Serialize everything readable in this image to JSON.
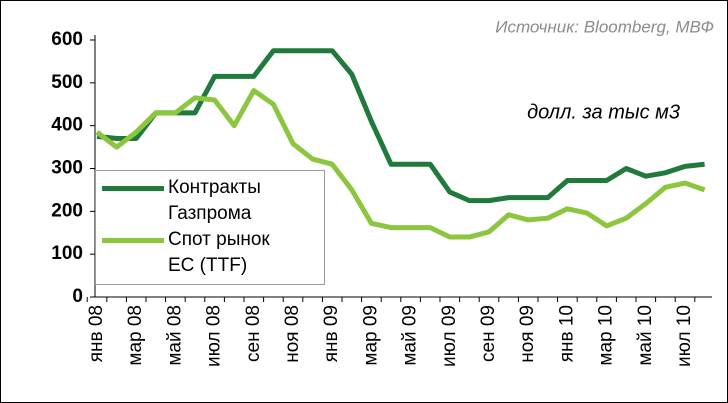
{
  "chart_data": {
    "type": "line",
    "source": "Источник: Bloomberg, МВФ",
    "unit_note": "долл. за тыс м3",
    "categories": [
      "янв 08",
      null,
      "мар 08",
      null,
      "май 08",
      null,
      "июл 08",
      null,
      "сен 08",
      null,
      "ноя 08",
      null,
      "янв 09",
      null,
      "мар 09",
      null,
      "май 09",
      null,
      "июл 09",
      null,
      "сен 09",
      null,
      "ноя 09",
      null,
      "янв 10",
      null,
      "мар 10",
      null,
      "май 10",
      null,
      "июл 10",
      null
    ],
    "series": [
      {
        "name": "Контракты Газпрома",
        "color": "#1f7a3c",
        "values": [
          375,
          370,
          370,
          430,
          430,
          430,
          515,
          515,
          515,
          575,
          575,
          575,
          575,
          520,
          410,
          310,
          310,
          310,
          245,
          225,
          225,
          232,
          232,
          232,
          272,
          272,
          272,
          300,
          282,
          290,
          305,
          310
        ]
      },
      {
        "name": "Спот рынок ЕС (TTF)",
        "color": "#8cc63f",
        "values": [
          385,
          350,
          385,
          430,
          430,
          465,
          460,
          400,
          482,
          450,
          358,
          322,
          310,
          250,
          172,
          162,
          162,
          162,
          140,
          140,
          152,
          192,
          180,
          184,
          206,
          196,
          166,
          184,
          218,
          256,
          266,
          250
        ]
      }
    ],
    "ylim": [
      0,
      600
    ],
    "yticks": [
      0,
      100,
      200,
      300,
      400,
      500,
      600
    ],
    "legend": "left"
  }
}
